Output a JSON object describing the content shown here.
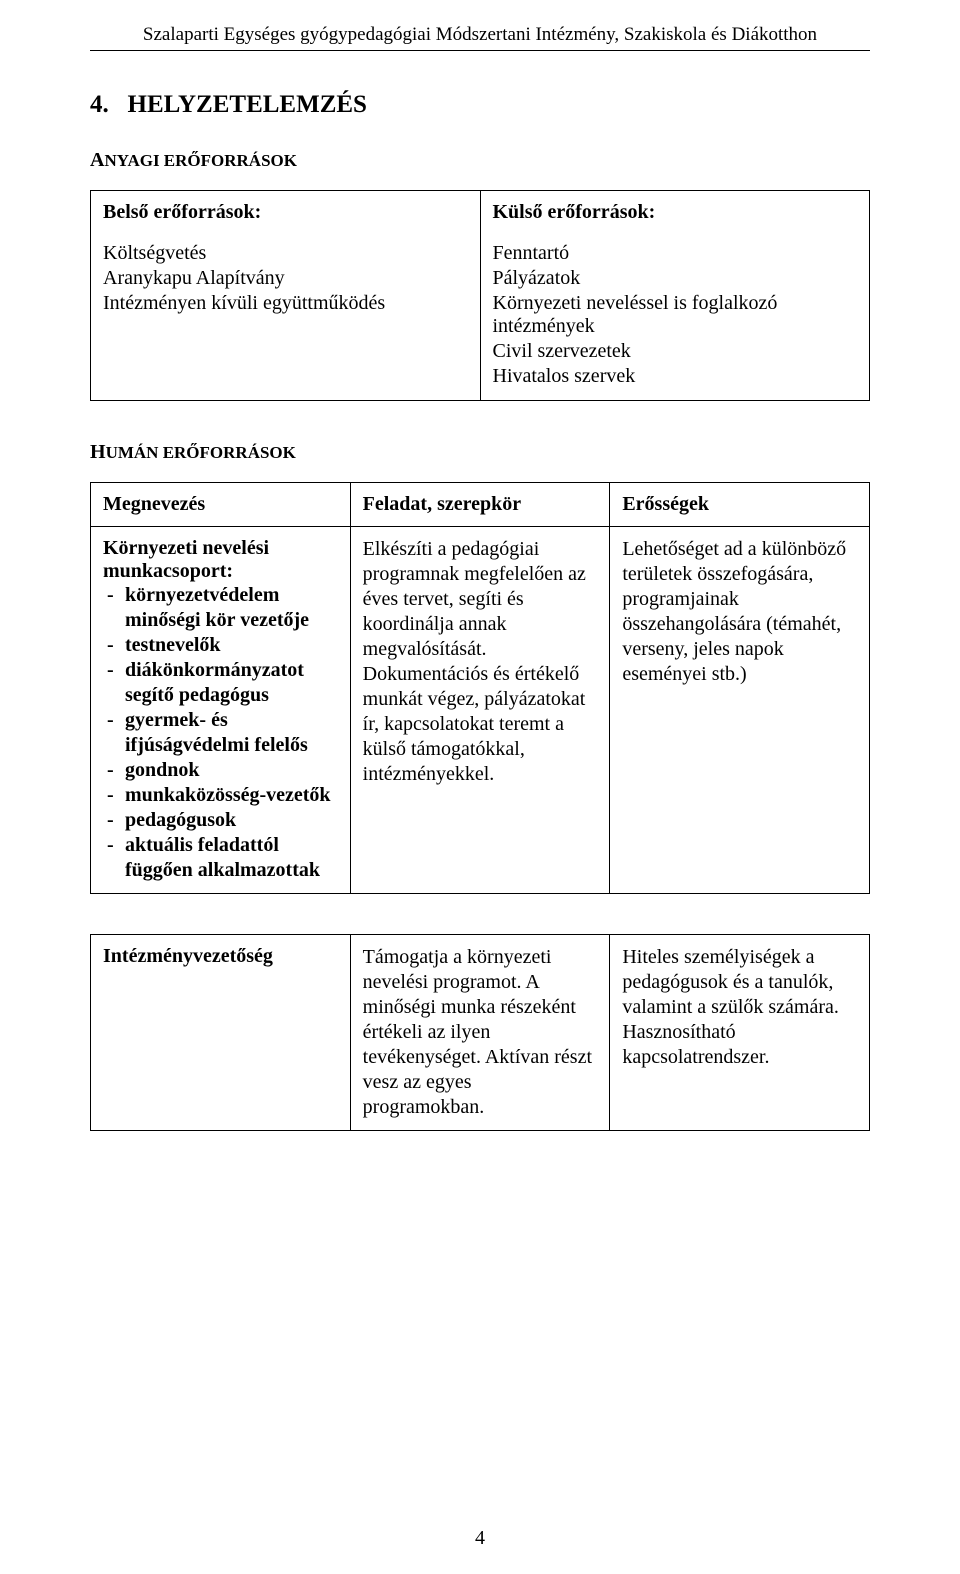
{
  "header": {
    "running_title": "Szalaparti Egységes gyógypedagógiai Módszertani Intézmény, Szakiskola és Diákotthon"
  },
  "section": {
    "number": "4.",
    "title": "HELYZETELEMZÉS"
  },
  "anyagi": {
    "heading_first": "A",
    "heading_rest": "NYAGI ERŐFORRÁSOK",
    "left": {
      "title": "Belső erőforrások:",
      "items": [
        "Költségvetés",
        "Aranykapu Alapítvány",
        "Intézményen kívüli együttműködés"
      ]
    },
    "right": {
      "title": "Külső erőforrások:",
      "items": [
        "Fenntartó",
        "Pályázatok",
        "Környezeti neveléssel is foglalkozó intézmények",
        "Civil szervezetek",
        "Hivatalos szervek"
      ]
    }
  },
  "human": {
    "heading_first": "H",
    "heading_rest": "UMÁN ERŐFORRÁSOK",
    "columns": [
      "Megnevezés",
      "Feladat, szerepkör",
      "Erősségek"
    ],
    "row1": {
      "name_title": "Környezeti nevelési munkacsoport:",
      "name_items": [
        "környezetvédelem minőségi kör vezetője",
        "testnevelők",
        "diákönkormányzatot segítő pedagógus",
        "gyermek- és ifjúságvédelmi felelős",
        "gondnok",
        "munkaközösség-vezetők",
        "pedagógusok",
        "aktuális feladattól függően alkalmazottak"
      ],
      "role": "Elkészíti a pedagógiai programnak megfelelően az éves tervet, segíti és koordinálja annak megvalósítását. Dokumentációs és értékelő munkát végez, pályázatokat ír, kapcsolatokat teremt a külső támogatókkal, intézményekkel.",
      "strength": "Lehetőséget ad a különböző területek összefogására, programjainak összehangolására (témahét, verseny, jeles napok eseményei stb.)"
    },
    "row2": {
      "name": "Intézményvezetőség",
      "role": "Támogatja a környezeti nevelési programot. A minőségi munka részeként értékeli az ilyen tevékenységet. Aktívan részt vesz az egyes programokban.",
      "strength": "Hiteles személyiségek a pedagógusok és a tanulók, valamint a szülők számára. Hasznosítható kapcsolatrendszer."
    }
  },
  "page_number": "4"
}
